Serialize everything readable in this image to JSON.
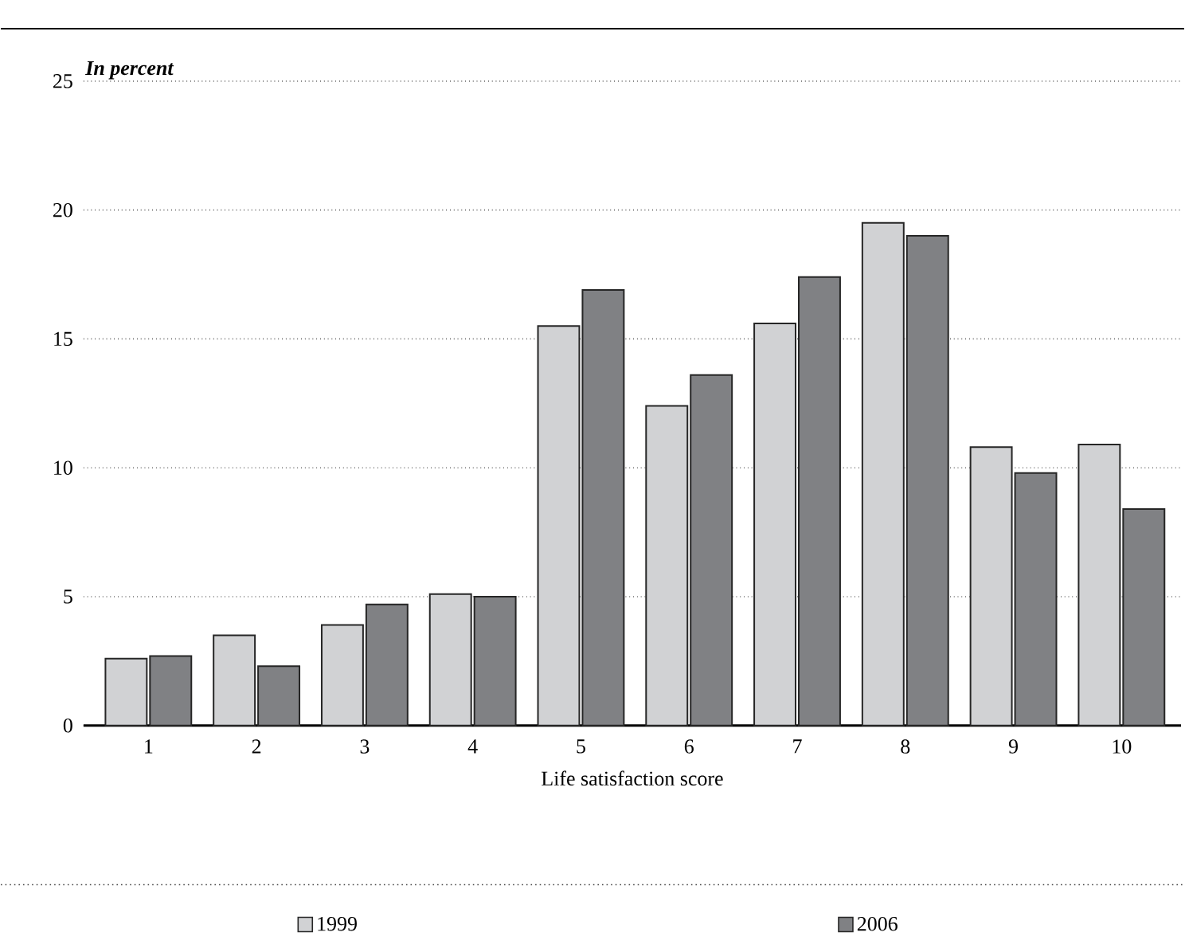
{
  "chart_data": {
    "type": "bar",
    "ylabel": "In percent",
    "xlabel": "Life satisfaction score",
    "categories": [
      "1",
      "2",
      "3",
      "4",
      "5",
      "6",
      "7",
      "8",
      "9",
      "10"
    ],
    "series": [
      {
        "name": "1999",
        "color": "#d1d2d4",
        "values": [
          2.6,
          3.5,
          3.9,
          5.1,
          15.5,
          12.4,
          15.6,
          19.5,
          10.8,
          10.9
        ]
      },
      {
        "name": "2006",
        "color": "#808184",
        "values": [
          2.7,
          2.3,
          4.7,
          5.0,
          16.9,
          13.6,
          17.4,
          19.0,
          9.8,
          8.4
        ]
      }
    ],
    "ylim": [
      0,
      25
    ],
    "yticks": [
      0,
      5,
      10,
      15,
      20,
      25
    ],
    "grid": "y",
    "legend": "bottom"
  }
}
